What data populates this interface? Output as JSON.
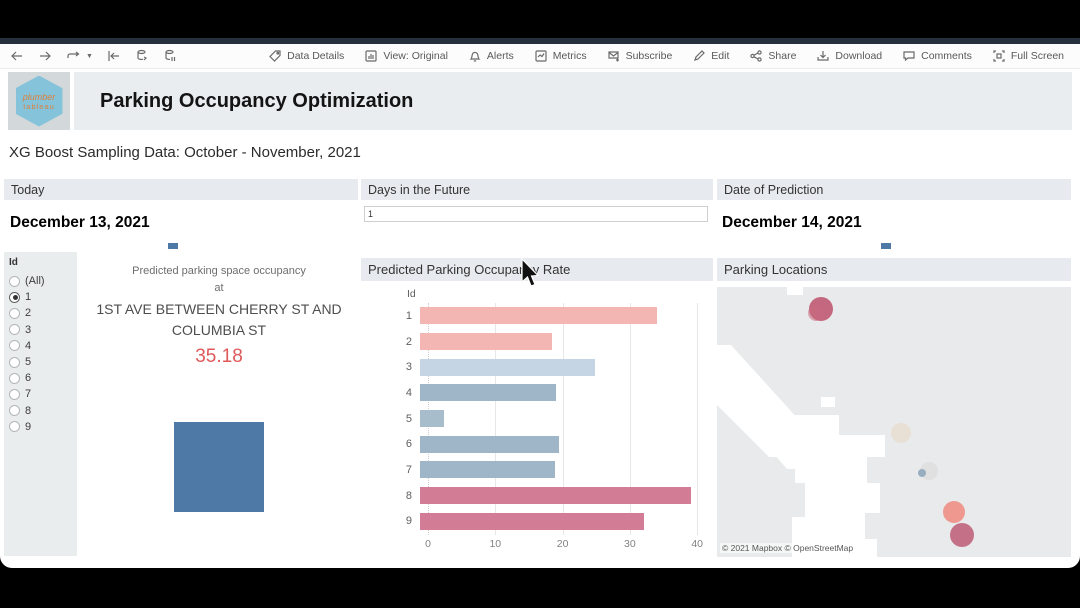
{
  "toolbar": {
    "right_items": [
      {
        "label": "Data Details",
        "icon": "tag-icon"
      },
      {
        "label": "View: Original",
        "icon": "view-icon"
      },
      {
        "label": "Alerts",
        "icon": "bell-icon"
      },
      {
        "label": "Metrics",
        "icon": "metrics-icon"
      },
      {
        "label": "Subscribe",
        "icon": "subscribe-icon"
      },
      {
        "label": "Edit",
        "icon": "edit-icon"
      },
      {
        "label": "Share",
        "icon": "share-icon"
      },
      {
        "label": "Download",
        "icon": "download-icon"
      },
      {
        "label": "Comments",
        "icon": "comments-icon"
      },
      {
        "label": "Full Screen",
        "icon": "fullscreen-icon"
      }
    ]
  },
  "header": {
    "title": "Parking Occupancy Optimization",
    "logo_line1": "plumber",
    "logo_line2": "tableau"
  },
  "subtitle": "XG Boost Sampling Data: October - November, 2021",
  "filters": {
    "today": {
      "label": "Today",
      "value": "December 13, 2021"
    },
    "days_in_future": {
      "label": "Days in the Future",
      "value": "1"
    },
    "date_of_prediction": {
      "label": "Date of Prediction",
      "value": "December 14, 2021"
    }
  },
  "id_filter": {
    "title": "Id",
    "options": [
      "(All)",
      "1",
      "2",
      "3",
      "4",
      "5",
      "6",
      "7",
      "8",
      "9"
    ],
    "selected": "1"
  },
  "prediction_card": {
    "line1": "Predicted parking space occupancy",
    "line2": "at",
    "location": "1ST AVE BETWEEN CHERRY ST AND COLUMBIA ST",
    "value": "35.18"
  },
  "chart_data": {
    "type": "bar",
    "orientation": "horizontal",
    "title": "Predicted Parking Occupancy Rate",
    "ylabel": "Id",
    "categories": [
      "1",
      "2",
      "3",
      "4",
      "5",
      "6",
      "7",
      "8",
      "9"
    ],
    "values": [
      35.18,
      19.6,
      26.0,
      20.2,
      3.6,
      20.6,
      20.0,
      40.2,
      33.3
    ],
    "bar_colors": [
      "#f4b6b2",
      "#f4b6b2",
      "#c5d5e3",
      "#9fb6c9",
      "#a7bdcc",
      "#9fb6c9",
      "#9fb6c9",
      "#d27d95",
      "#d27d95"
    ],
    "x_ticks": [
      0,
      10,
      20,
      30,
      40
    ],
    "xlim": [
      0,
      42
    ],
    "grid": true,
    "legend": false
  },
  "map": {
    "title": "Parking Locations",
    "attribution": "© 2021 Mapbox  © OpenStreetMap",
    "markers": [
      {
        "x": 104,
        "y": 22,
        "r": 12,
        "color": "#bd5570",
        "opacity": 0.88
      },
      {
        "x": 99,
        "y": 26,
        "r": 8,
        "color": "#c96a80",
        "opacity": 0.55
      },
      {
        "x": 184,
        "y": 146,
        "r": 10,
        "color": "#e7dccf",
        "opacity": 0.8
      },
      {
        "x": 212,
        "y": 184,
        "r": 9,
        "color": "#dbdbdb",
        "opacity": 0.7
      },
      {
        "x": 205,
        "y": 186,
        "r": 4,
        "color": "#90a7bc",
        "opacity": 0.9
      },
      {
        "x": 237,
        "y": 225,
        "r": 11,
        "color": "#ee938a",
        "opacity": 0.95
      },
      {
        "x": 245,
        "y": 248,
        "r": 12,
        "color": "#c26a83",
        "opacity": 0.95
      }
    ]
  },
  "colors": {
    "accent_blue": "#4e79a7",
    "value_red": "#e0595a",
    "panel_header_bg": "#e7ebef"
  }
}
